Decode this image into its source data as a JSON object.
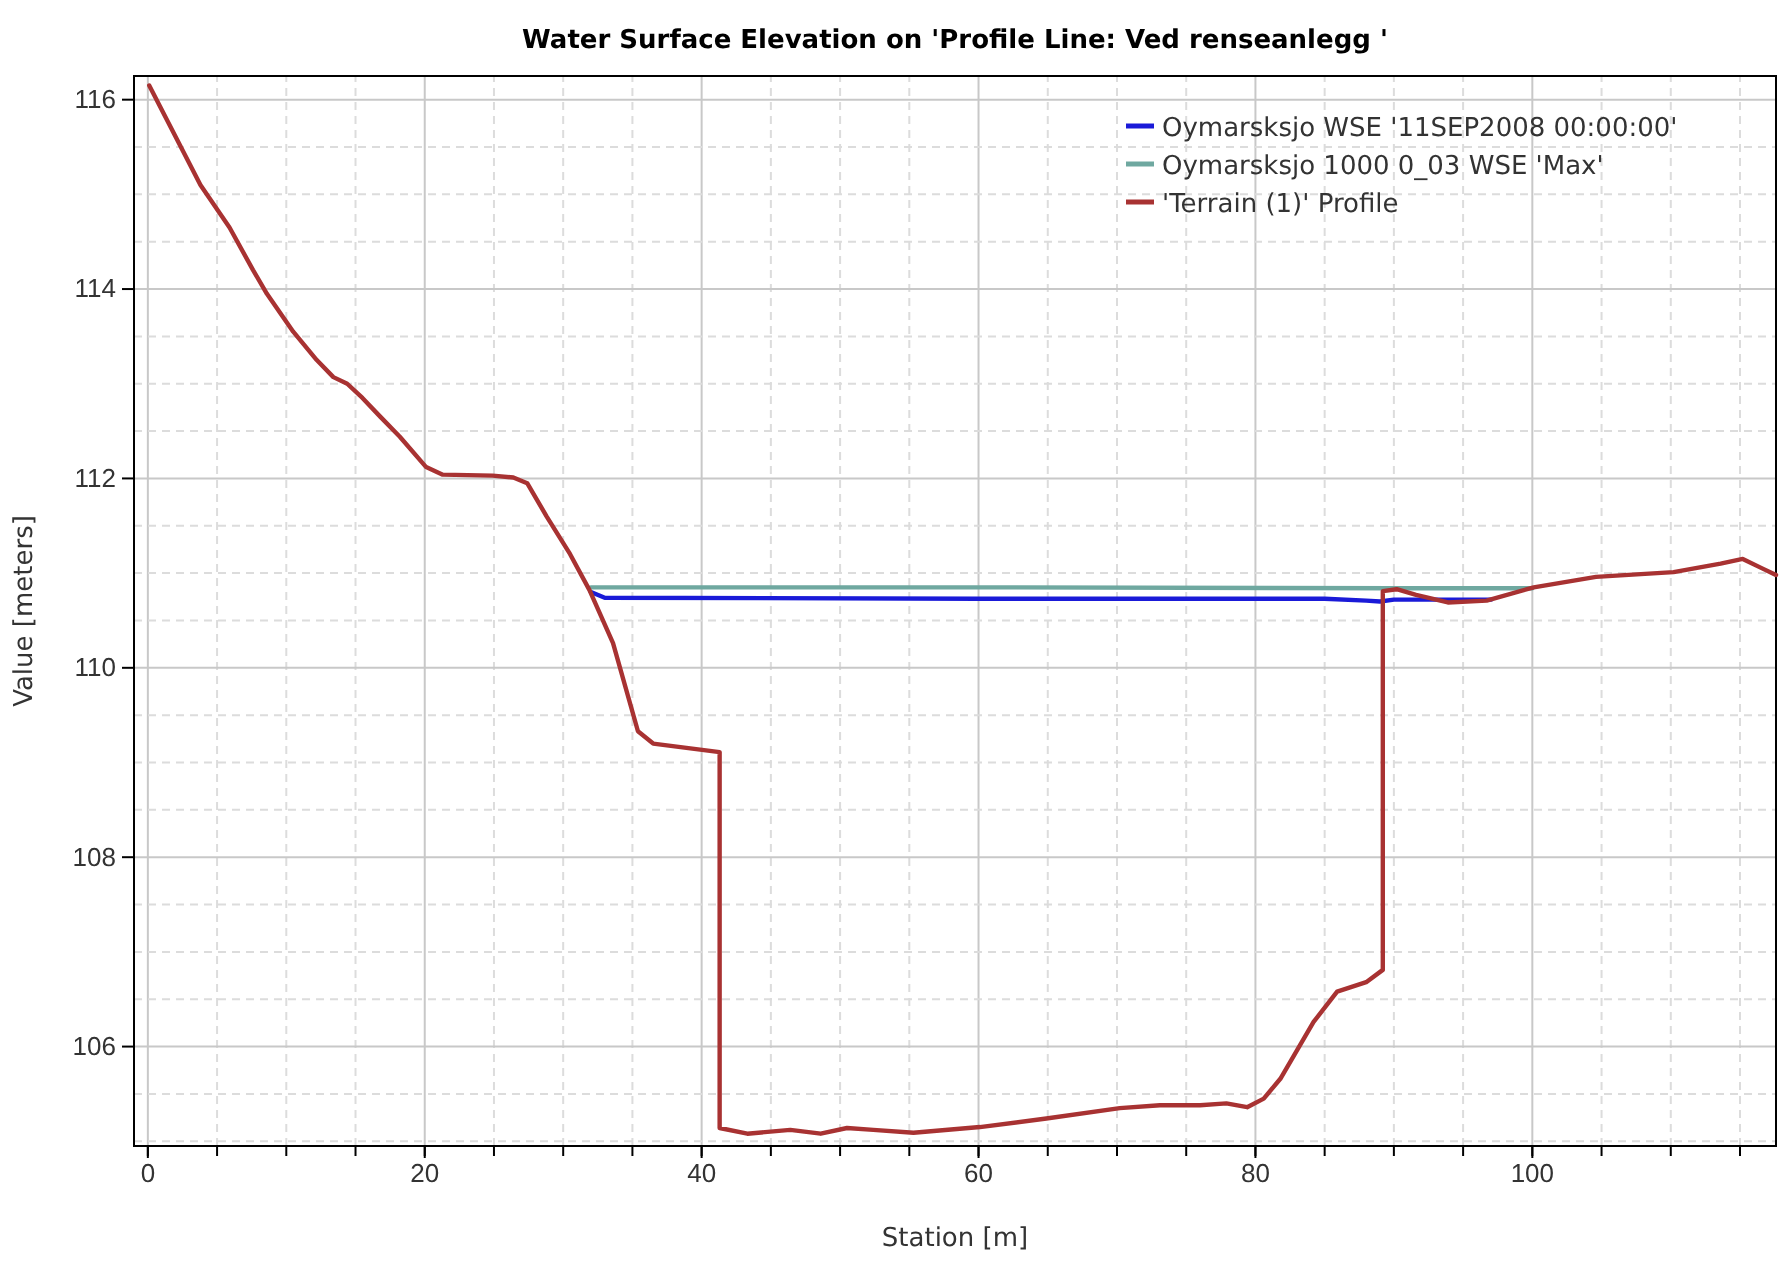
{
  "chart_data": {
    "type": "line",
    "title": "Water Surface Elevation on 'Profile Line: Ved renseanlegg '",
    "xlabel": "Station [m]",
    "ylabel": "Value [meters]",
    "xlim": [
      -1,
      117.6
    ],
    "ylim": [
      104.95,
      116.25
    ],
    "xticks": [
      0,
      20,
      40,
      60,
      80,
      100
    ],
    "yticks": [
      106,
      108,
      110,
      112,
      114,
      116
    ],
    "grid": true,
    "legend": "top right",
    "line_style": "solid",
    "marker": "none",
    "series": [
      {
        "name": "Oymarsksjo WSE '11SEP2008 00:00:00'",
        "color": "#1a1ad8",
        "x": [
          32,
          33,
          60,
          85,
          88,
          89,
          90,
          97
        ],
        "values": [
          110.8,
          110.74,
          110.73,
          110.73,
          110.71,
          110.7,
          110.72,
          110.72
        ]
      },
      {
        "name": "Oymarsksjo 1000 0_03 WSE 'Max'",
        "color": "#6fa8a0",
        "x": [
          32,
          60,
          90,
          100
        ],
        "values": [
          110.85,
          110.85,
          110.84,
          110.84
        ]
      },
      {
        "name": "'Terrain (1)' Profile",
        "color": "#a83232",
        "x": [
          0.1,
          3.8,
          5.9,
          7.6,
          8.6,
          10.5,
          12.2,
          13.4,
          14.4,
          15.5,
          16.8,
          18.2,
          20.1,
          21.3,
          24.9,
          26.4,
          27.4,
          28.8,
          30.5,
          31.9,
          33.6,
          35.4,
          36.5,
          41.3,
          41.3,
          43.3,
          46.4,
          48.6,
          50.5,
          52.4,
          55.3,
          60.1,
          64.9,
          70.2,
          73.1,
          76,
          77.9,
          79.4,
          80.6,
          81.8,
          84.2,
          85.9,
          88,
          89.2,
          89.2,
          90.2,
          91.6,
          93.9,
          96.7,
          100.1,
          104.6,
          110.2,
          113.6,
          115.2,
          116.6,
          117.6
        ],
        "values": [
          116.15,
          115.1,
          114.65,
          114.2,
          113.95,
          113.55,
          113.25,
          113.07,
          113,
          112.85,
          112.65,
          112.44,
          112.12,
          112.04,
          112.03,
          112.01,
          111.95,
          111.6,
          111.2,
          110.82,
          110.26,
          109.33,
          109.2,
          109.11,
          105.14,
          105.08,
          105.12,
          105.08,
          105.14,
          105.12,
          105.09,
          105.15,
          105.24,
          105.35,
          105.38,
          105.38,
          105.4,
          105.36,
          105.45,
          105.66,
          106.26,
          106.58,
          106.68,
          106.81,
          110.81,
          110.83,
          110.77,
          110.69,
          110.71,
          110.85,
          110.96,
          111.01,
          111.1,
          111.15,
          111.05,
          110.98
        ]
      }
    ]
  }
}
